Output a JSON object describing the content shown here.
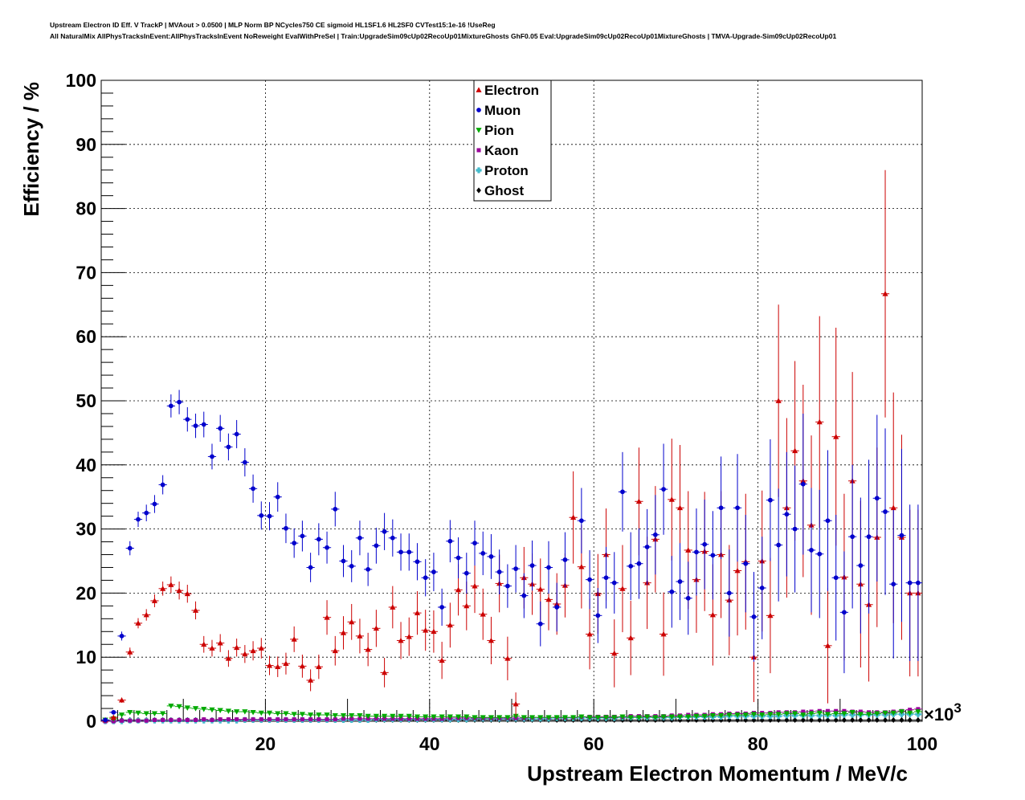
{
  "title_lines": [
    "Upstream Electron ID Eff. V TrackP | MVAout > 0.0500 | MLP Norm BP NCycles750 CE sigmoid HL1SF1.6 HL2SF0 CVTest15:1e-16 !UseReg",
    "All NaturalMix AllPhysTracksInEvent:AllPhysTracksInEvent NoReweight EvalWithPreSel | Train:UpgradeSim09cUp02RecoUp01MixtureGhosts GhF0.05 Eval:UpgradeSim09cUp02RecoUp01MixtureGhosts | TMVA-Upgrade-Sim09cUp02RecoUp01"
  ],
  "chart_data": {
    "type": "scatter",
    "xlabel": "Upstream Electron Momentum / MeV/c",
    "ylabel": "Efficiency / %",
    "x_exponent_label": "×10",
    "x_exponent_power": "3",
    "xlim": [
      0,
      100
    ],
    "ylim": [
      0,
      100
    ],
    "x_ticks": [
      20,
      40,
      60,
      80,
      100
    ],
    "y_ticks": [
      0,
      10,
      20,
      30,
      40,
      50,
      60,
      70,
      80,
      90,
      100
    ],
    "x_tick_labels": [
      "20",
      "40",
      "60",
      "80",
      "100"
    ],
    "y_tick_labels": [
      "0",
      "10",
      "20",
      "30",
      "40",
      "50",
      "60",
      "70",
      "80",
      "90",
      "100"
    ],
    "grid": true,
    "legend_position": "top-center",
    "legend": [
      "Electron",
      "Muon",
      "Pion",
      "Kaon",
      "Proton",
      "Ghost"
    ],
    "x": [
      1,
      2,
      3,
      4,
      5,
      6,
      7,
      8,
      9,
      10,
      11,
      12,
      13,
      14,
      15,
      16,
      17,
      18,
      19,
      20,
      21,
      22,
      23,
      24,
      25,
      26,
      27,
      28,
      29,
      30,
      31,
      32,
      33,
      34,
      35,
      36,
      37,
      38,
      39,
      40,
      41,
      42,
      43,
      44,
      45,
      46,
      47,
      48,
      49,
      50,
      51,
      52,
      53,
      54,
      55,
      56,
      57,
      58,
      59,
      60,
      61,
      62,
      63,
      64,
      65,
      66,
      67,
      68,
      69,
      70,
      71,
      72,
      73,
      74,
      75,
      76,
      77,
      78,
      79,
      80,
      81,
      82,
      83,
      84,
      85,
      86,
      87,
      88,
      89,
      90,
      91,
      92,
      93,
      94,
      95,
      96,
      97,
      98,
      99,
      100
    ],
    "series": [
      {
        "name": "Electron",
        "color": "#cc0000",
        "marker": "triangle-up",
        "values": [
          0.2,
          0.6,
          3.3,
          10.8,
          15.3,
          16.6,
          18.8,
          20.7,
          21.3,
          20.4,
          19.9,
          17.3,
          12.0,
          11.4,
          12.2,
          9.8,
          11.5,
          10.5,
          11.0,
          11.4,
          8.7,
          8.5,
          9.0,
          12.8,
          8.6,
          6.4,
          8.5,
          16.2,
          11.0,
          13.8,
          15.5,
          13.3,
          11.2,
          14.5,
          7.6,
          17.8,
          12.6,
          13.2,
          16.9,
          14.2,
          14.0,
          9.5,
          15.0,
          20.5,
          18.0,
          21.1,
          16.7,
          12.6,
          21.5,
          9.8,
          2.7,
          22.4,
          21.4,
          20.6,
          19.0,
          18.3,
          21.2,
          31.8,
          24.1,
          13.6,
          19.9,
          26.0,
          10.6,
          20.7,
          13.0,
          34.3,
          21.6,
          28.4,
          13.6,
          34.6,
          33.3,
          26.7,
          22.1,
          26.5,
          16.6,
          26.0,
          18.9,
          23.5,
          24.9,
          10.0,
          25.0,
          16.5,
          50.0,
          33.3,
          42.2,
          37.5,
          30.6,
          46.7,
          11.8,
          44.4,
          22.5,
          37.5,
          21.4,
          18.2,
          28.7,
          66.7,
          33.3,
          28.7,
          20.0,
          20.0
        ]
      },
      {
        "name": "Muon",
        "color": "#0000cc",
        "marker": "circle",
        "values": [
          0.2,
          1.4,
          13.3,
          27.0,
          31.5,
          32.5,
          33.9,
          36.9,
          49.2,
          49.8,
          47.1,
          46.1,
          46.3,
          41.3,
          45.7,
          42.8,
          44.8,
          40.4,
          36.3,
          32.1,
          32.0,
          35.0,
          30.1,
          27.8,
          28.9,
          24.0,
          28.4,
          27.1,
          33.1,
          25.0,
          24.2,
          28.6,
          23.7,
          27.4,
          29.6,
          28.6,
          26.4,
          26.4,
          24.9,
          22.4,
          23.3,
          17.8,
          28.1,
          25.5,
          23.1,
          27.8,
          26.2,
          25.7,
          23.3,
          21.1,
          23.8,
          19.6,
          24.3,
          15.2,
          24.0,
          17.8,
          25.2,
          null,
          31.3,
          22.1,
          16.5,
          22.4,
          21.6,
          35.8,
          24.2,
          24.6,
          27.2,
          29.1,
          36.2,
          20.2,
          21.8,
          19.2,
          26.4,
          27.6,
          25.9,
          33.3,
          20.0,
          33.3,
          24.6,
          16.3,
          20.8,
          34.5,
          27.5,
          32.3,
          30.0,
          37.0,
          26.7,
          26.1,
          31.3,
          22.4,
          17.0,
          28.8,
          24.3,
          28.8,
          34.8,
          32.7,
          21.4,
          29.0,
          21.6,
          21.6
        ]
      },
      {
        "name": "Pion",
        "color": "#00aa00",
        "marker": "triangle-down",
        "values": [
          0.2,
          0.4,
          1.0,
          1.4,
          1.3,
          1.2,
          1.2,
          1.2,
          2.4,
          2.3,
          2.1,
          2.0,
          1.9,
          1.8,
          1.7,
          1.6,
          1.5,
          1.5,
          1.4,
          1.3,
          1.3,
          1.2,
          1.2,
          1.1,
          1.1,
          1.0,
          1.0,
          1.0,
          0.9,
          0.9,
          0.9,
          0.9,
          0.8,
          0.8,
          0.8,
          0.8,
          0.8,
          0.8,
          0.7,
          0.7,
          0.7,
          0.7,
          0.7,
          0.7,
          0.7,
          0.6,
          0.6,
          0.6,
          0.6,
          0.6,
          0.8,
          0.6,
          0.6,
          0.6,
          0.6,
          0.6,
          0.6,
          0.6,
          0.7,
          0.6,
          0.6,
          0.6,
          0.6,
          0.7,
          0.6,
          0.6,
          0.7,
          0.6,
          0.7,
          0.7,
          0.7,
          0.7,
          0.8,
          0.8,
          0.9,
          0.9,
          1.0,
          1.0,
          1.0,
          1.1,
          1.0,
          1.1,
          1.1,
          1.2,
          1.2,
          1.0,
          1.2,
          1.3,
          1.1,
          1.2,
          1.2,
          1.4,
          1.1,
          1.1,
          1.2,
          1.3,
          1.3,
          1.5,
          1.3,
          1.5
        ]
      },
      {
        "name": "Kaon",
        "color": "#990099",
        "marker": "square",
        "values": [
          0.0,
          0.0,
          0.1,
          0.1,
          0.1,
          0.1,
          0.2,
          0.2,
          0.2,
          0.2,
          0.2,
          0.2,
          0.3,
          0.2,
          0.3,
          0.3,
          0.3,
          0.3,
          0.3,
          0.3,
          0.3,
          0.3,
          0.3,
          0.3,
          0.3,
          0.3,
          0.3,
          0.3,
          0.3,
          0.4,
          0.4,
          0.4,
          0.4,
          0.4,
          0.4,
          0.4,
          0.4,
          0.4,
          0.4,
          0.4,
          0.4,
          0.4,
          0.5,
          0.5,
          0.5,
          0.5,
          0.5,
          0.5,
          0.5,
          0.5,
          0.5,
          0.5,
          0.6,
          0.6,
          0.6,
          0.6,
          0.6,
          0.6,
          0.7,
          0.7,
          0.7,
          0.7,
          0.7,
          0.7,
          0.8,
          0.8,
          0.8,
          0.8,
          0.8,
          0.9,
          0.9,
          1.0,
          1.0,
          1.0,
          1.1,
          1.1,
          1.2,
          1.2,
          1.2,
          1.3,
          1.3,
          1.3,
          1.4,
          1.4,
          1.4,
          1.5,
          1.5,
          1.6,
          1.6,
          1.6,
          1.6,
          1.5,
          1.5,
          1.4,
          1.4,
          1.4,
          1.5,
          1.6,
          1.8,
          1.9
        ]
      },
      {
        "name": "Proton",
        "color": "#44bbcc",
        "marker": "cross",
        "values": [
          0.0,
          0.0,
          0.0,
          0.1,
          0.1,
          0.1,
          0.1,
          0.1,
          0.1,
          0.1,
          0.1,
          0.1,
          0.1,
          0.1,
          0.1,
          0.1,
          0.1,
          0.2,
          0.2,
          0.2,
          0.2,
          0.2,
          0.2,
          0.2,
          0.2,
          0.2,
          0.2,
          0.2,
          0.2,
          0.2,
          0.2,
          0.2,
          0.2,
          0.3,
          0.3,
          0.3,
          0.3,
          0.3,
          0.3,
          0.3,
          0.3,
          0.3,
          0.3,
          0.3,
          0.3,
          0.4,
          0.4,
          0.4,
          0.4,
          0.4,
          0.4,
          0.4,
          0.4,
          0.4,
          0.4,
          0.5,
          0.5,
          0.5,
          0.5,
          0.5,
          0.5,
          0.5,
          0.5,
          0.6,
          0.6,
          0.6,
          0.6,
          0.6,
          0.6,
          0.6,
          0.7,
          0.7,
          0.7,
          0.7,
          0.7,
          0.7,
          0.8,
          0.8,
          0.8,
          0.8,
          0.8,
          0.8,
          0.8,
          0.9,
          0.9,
          0.9,
          0.9,
          0.9,
          0.9,
          0.9,
          1.0,
          1.0,
          1.0,
          1.0,
          1.0,
          1.0,
          1.1,
          1.1,
          1.1,
          1.1
        ]
      },
      {
        "name": "Ghost",
        "color": "#000000",
        "marker": "diamond",
        "values": [
          0.1,
          0.1,
          0.2,
          0.2,
          0.2,
          0.2,
          0.2,
          0.2,
          0.2,
          0.2,
          0.2,
          0.2,
          0.2,
          0.2,
          0.2,
          0.2,
          0.2,
          0.2,
          0.2,
          0.2,
          0.2,
          0.2,
          0.2,
          0.2,
          0.2,
          0.2,
          0.2,
          0.2,
          0.2,
          0.2,
          0.2,
          0.2,
          0.2,
          0.2,
          0.2,
          0.2,
          0.2,
          0.2,
          0.2,
          0.2,
          0.2,
          0.2,
          0.2,
          0.2,
          0.2,
          0.2,
          0.2,
          0.2,
          0.2,
          0.2,
          0.2,
          0.2,
          0.2,
          0.2,
          0.2,
          0.2,
          0.2,
          0.2,
          0.2,
          0.2,
          0.2,
          0.2,
          0.2,
          0.2,
          0.2,
          0.2,
          0.2,
          0.2,
          0.2,
          0.2,
          0.2,
          0.2,
          0.2,
          0.2,
          0.2,
          0.2,
          0.2,
          0.2,
          0.2,
          0.2,
          0.2,
          0.2,
          0.2,
          0.2,
          0.2,
          0.2,
          0.2,
          0.2,
          0.2,
          0.2,
          0.2,
          0.2,
          0.2,
          0.2,
          0.2,
          0.2,
          0.2,
          0.2,
          0.2,
          0.2
        ]
      }
    ],
    "errors": {
      "Electron": [
        0.1,
        0.2,
        0.4,
        0.7,
        0.8,
        0.9,
        1.0,
        1.1,
        1.3,
        1.4,
        1.4,
        1.4,
        1.3,
        1.3,
        1.4,
        1.3,
        1.4,
        1.4,
        1.5,
        1.6,
        1.5,
        1.6,
        1.7,
        2.0,
        1.8,
        1.7,
        1.9,
        2.7,
        2.3,
        2.6,
        2.8,
        2.7,
        2.6,
        2.9,
        2.3,
        3.3,
        2.9,
        3.0,
        3.4,
        3.2,
        3.3,
        2.9,
        3.5,
        4.0,
        3.8,
        4.2,
        4.0,
        3.7,
        4.5,
        3.4,
        1.8,
        4.8,
        4.8,
        4.8,
        4.8,
        4.8,
        5.0,
        7.2,
        6.5,
        5.5,
        6.2,
        7.2,
        5.3,
        6.8,
        5.8,
        8.4,
        7.2,
        8.3,
        6.5,
        9.5,
        9.8,
        9.2,
        8.3,
        9.3,
        7.9,
        9.9,
        8.6,
        10.1,
        10.6,
        7.0,
        11.0,
        9.0,
        15.0,
        14.0,
        14.0,
        15.0,
        14.0,
        16.5,
        9.0,
        17.0,
        13.0,
        17.0,
        13.0,
        12.0,
        14.0,
        19.3,
        18.0,
        16.0,
        13.0,
        13.0
      ],
      "Muon": [
        0.1,
        0.3,
        0.7,
        1.1,
        1.2,
        1.3,
        1.4,
        1.5,
        1.8,
        1.9,
        1.9,
        1.9,
        2.0,
        2.0,
        2.1,
        2.1,
        2.2,
        2.2,
        2.2,
        2.2,
        2.2,
        2.3,
        2.3,
        2.3,
        2.4,
        2.3,
        2.5,
        2.5,
        2.7,
        2.5,
        2.5,
        2.7,
        2.6,
        2.8,
        2.9,
        2.9,
        2.9,
        2.9,
        2.9,
        2.9,
        3.0,
        2.9,
        3.3,
        3.2,
        3.2,
        3.5,
        3.4,
        3.5,
        3.5,
        3.4,
        3.7,
        3.5,
        3.9,
        3.5,
        4.1,
        3.8,
        4.3,
        null,
        5.1,
        4.6,
        4.3,
        4.8,
        4.8,
        6.2,
        5.3,
        5.5,
        5.9,
        6.2,
        7.1,
        5.6,
        6.0,
        5.7,
        6.8,
        7.0,
        6.9,
        8.0,
        6.8,
        8.4,
        7.6,
        7.0,
        8.0,
        9.5,
        8.8,
        9.7,
        9.9,
        11.0,
        9.7,
        10.0,
        11.0,
        9.8,
        9.5,
        11.2,
        10.6,
        12.0,
        13.0,
        13.0,
        11.6,
        13.5,
        12.2,
        12.2
      ]
    }
  }
}
